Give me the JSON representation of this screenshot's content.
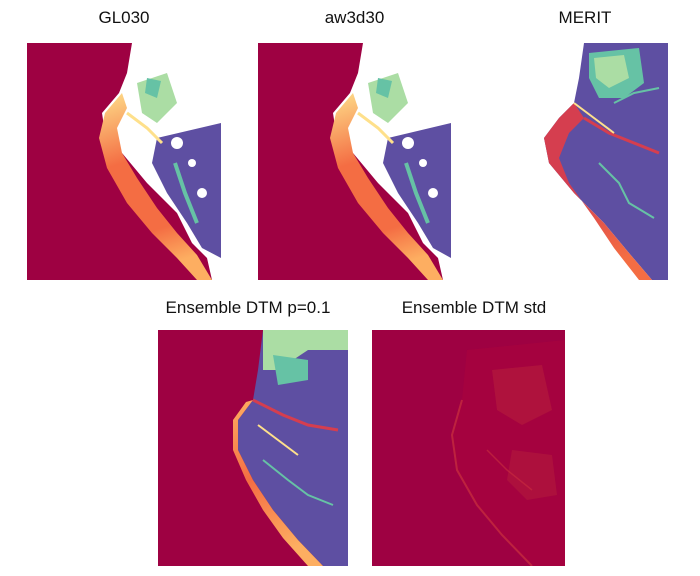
{
  "figure": {
    "panels": [
      {
        "id": "gl030",
        "title": "GL030"
      },
      {
        "id": "aw3d30",
        "title": "aw3d30"
      },
      {
        "id": "merit",
        "title": "MERIT"
      },
      {
        "id": "ensemble-p01",
        "title": "Ensemble DTM p=0.1"
      },
      {
        "id": "ensemble-std",
        "title": "Ensemble DTM std"
      }
    ]
  },
  "colors": {
    "ocean_red": "#9e0142",
    "red": "#d53e4f",
    "orange": "#f46d43",
    "yellow": "#fee08b",
    "light_green": "#abdda4",
    "teal": "#66c2a5",
    "blue": "#3288bd",
    "purple": "#5e4fa2",
    "white": "#ffffff"
  }
}
